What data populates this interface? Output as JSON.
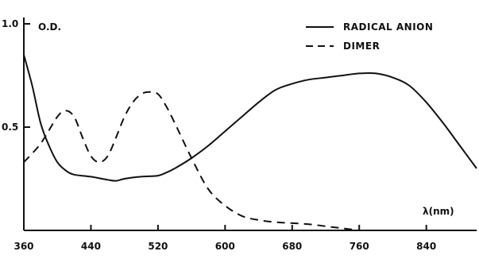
{
  "chart_data": {
    "type": "line",
    "title": "",
    "y_unit_label": "O.D.",
    "x_unit_label": "λ(nm)",
    "xlim": [
      360,
      900
    ],
    "ylim": [
      0,
      1.0
    ],
    "x_ticks": [
      360,
      440,
      520,
      600,
      680,
      760,
      840
    ],
    "x_tick_labels": [
      "360",
      "440",
      "520",
      "600",
      "680",
      "760",
      "840"
    ],
    "y_ticks": [
      0.5,
      1.0
    ],
    "y_tick_labels": [
      "0.5",
      "1.0"
    ],
    "grid": false,
    "legend_position": "top-right",
    "series": [
      {
        "name": "RADICAL ANION",
        "style": "solid",
        "color": "#111111",
        "x": [
          360,
          370,
          380,
          390,
          400,
          410,
          420,
          440,
          460,
          470,
          480,
          500,
          520,
          530,
          540,
          560,
          580,
          600,
          620,
          640,
          660,
          680,
          700,
          720,
          740,
          760,
          780,
          800,
          820,
          840,
          860,
          880,
          900
        ],
        "y": [
          0.85,
          0.7,
          0.52,
          0.41,
          0.33,
          0.29,
          0.27,
          0.26,
          0.245,
          0.24,
          0.25,
          0.26,
          0.265,
          0.28,
          0.3,
          0.35,
          0.41,
          0.48,
          0.55,
          0.62,
          0.68,
          0.71,
          0.73,
          0.74,
          0.75,
          0.76,
          0.76,
          0.74,
          0.7,
          0.62,
          0.52,
          0.41,
          0.3
        ]
      },
      {
        "name": "DIMER",
        "style": "dashed",
        "color": "#111111",
        "x": [
          360,
          380,
          400,
          410,
          420,
          430,
          440,
          450,
          460,
          470,
          480,
          490,
          500,
          510,
          520,
          530,
          540,
          560,
          580,
          600,
          620,
          640,
          660,
          680,
          700,
          720,
          740,
          760
        ],
        "y": [
          0.33,
          0.42,
          0.55,
          0.58,
          0.55,
          0.45,
          0.36,
          0.33,
          0.36,
          0.45,
          0.55,
          0.62,
          0.66,
          0.67,
          0.66,
          0.6,
          0.52,
          0.35,
          0.2,
          0.12,
          0.07,
          0.05,
          0.04,
          0.035,
          0.03,
          0.02,
          0.01,
          0.0
        ]
      }
    ]
  }
}
